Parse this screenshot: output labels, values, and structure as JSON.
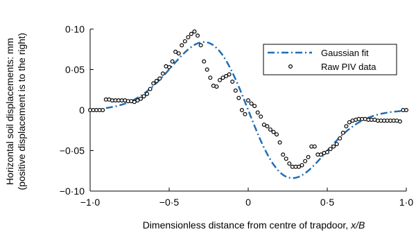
{
  "chart_data": {
    "type": "scatter",
    "title": "",
    "xlabel": "Dimensionless distance from centre of trapdoor, x/B",
    "xlabel_plain": "Dimensionless distance from centre of trapdoor, ",
    "xlabel_italic": "x/B",
    "ylabel_line1": "Horizontal soil displacements: mm",
    "ylabel_line2": "(positive displacement is to the right)",
    "xlim": [
      -1.0,
      1.0
    ],
    "ylim": [
      -0.1,
      0.1
    ],
    "xticks": [
      -1.0,
      -0.5,
      0,
      0.5,
      1.0
    ],
    "xtick_labels": [
      "−1·0",
      "−0·5",
      "0",
      "0·5",
      "1·0"
    ],
    "yticks": [
      -0.1,
      -0.05,
      0,
      0.05,
      0.1
    ],
    "ytick_labels": [
      "−0·10",
      "−0·05",
      "0",
      "0·05",
      "0·10"
    ],
    "grid": false,
    "legend_position": "top-right",
    "series": [
      {
        "name": "Gaussian fit",
        "style": "dash-dot line",
        "color": "#1f6db5",
        "amplitude_mm": 0.084,
        "peak_x": -0.28,
        "x": [
          -0.95,
          -0.9,
          -0.85,
          -0.8,
          -0.75,
          -0.7,
          -0.65,
          -0.6,
          -0.55,
          -0.5,
          -0.45,
          -0.4,
          -0.35,
          -0.3,
          -0.28,
          -0.25,
          -0.2,
          -0.15,
          -0.1,
          -0.05,
          0,
          0.05,
          0.1,
          0.15,
          0.2,
          0.25,
          0.28,
          0.3,
          0.35,
          0.4,
          0.45,
          0.5,
          0.55,
          0.6,
          0.65,
          0.7,
          0.75,
          0.8,
          0.85,
          0.9,
          0.95,
          1.0
        ],
        "values": [
          0.0,
          0.0002,
          0.0006,
          0.0015,
          0.0034,
          0.0069,
          0.0127,
          0.0212,
          0.0324,
          0.0456,
          0.0593,
          0.0716,
          0.0803,
          0.0837,
          0.084,
          0.0833,
          0.0779,
          0.0672,
          0.0526,
          0.0366,
          0.0,
          -0.0366,
          -0.0526,
          -0.0672,
          -0.0779,
          -0.0833,
          -0.084,
          -0.0837,
          -0.0803,
          -0.0716,
          -0.0593,
          -0.0456,
          -0.0324,
          -0.0212,
          -0.0127,
          -0.0069,
          -0.0034,
          -0.0015,
          -0.0006,
          -0.0002,
          0.0,
          0.0
        ]
      },
      {
        "name": "Raw PIV data",
        "style": "open circle markers",
        "color": "#000000",
        "x": [
          -1.0,
          -0.98,
          -0.96,
          -0.94,
          -0.92,
          -0.9,
          -0.88,
          -0.86,
          -0.84,
          -0.82,
          -0.8,
          -0.78,
          -0.76,
          -0.74,
          -0.72,
          -0.7,
          -0.68,
          -0.66,
          -0.64,
          -0.62,
          -0.6,
          -0.58,
          -0.56,
          -0.54,
          -0.52,
          -0.5,
          -0.48,
          -0.46,
          -0.44,
          -0.42,
          -0.4,
          -0.38,
          -0.36,
          -0.34,
          -0.32,
          -0.3,
          -0.28,
          -0.26,
          -0.24,
          -0.22,
          -0.2,
          -0.18,
          -0.16,
          -0.14,
          -0.12,
          -0.1,
          -0.08,
          -0.06,
          -0.04,
          -0.02,
          0.0,
          0.02,
          0.04,
          0.06,
          0.08,
          0.1,
          0.12,
          0.14,
          0.16,
          0.18,
          0.2,
          0.22,
          0.24,
          0.26,
          0.28,
          0.3,
          0.32,
          0.34,
          0.36,
          0.38,
          0.4,
          0.42,
          0.44,
          0.46,
          0.48,
          0.5,
          0.52,
          0.54,
          0.56,
          0.58,
          0.6,
          0.62,
          0.64,
          0.66,
          0.68,
          0.7,
          0.72,
          0.74,
          0.76,
          0.78,
          0.8,
          0.82,
          0.84,
          0.86,
          0.88,
          0.9,
          0.92,
          0.94,
          0.96,
          0.98,
          1.0
        ],
        "values": [
          0.0,
          0.0,
          0.0,
          0.0,
          0.0,
          0.013,
          0.013,
          0.012,
          0.012,
          0.012,
          0.012,
          0.012,
          0.011,
          0.011,
          0.01,
          0.012,
          0.014,
          0.017,
          0.02,
          0.026,
          0.033,
          0.036,
          0.039,
          0.045,
          0.054,
          0.053,
          0.06,
          0.072,
          0.07,
          0.08,
          0.085,
          0.09,
          0.094,
          0.097,
          0.092,
          0.08,
          0.06,
          0.05,
          0.04,
          0.03,
          0.029,
          0.037,
          0.04,
          0.042,
          0.044,
          0.035,
          0.024,
          0.015,
          0.0,
          -0.005,
          0.012,
          0.008,
          0.005,
          -0.003,
          -0.008,
          -0.018,
          -0.02,
          -0.024,
          -0.027,
          -0.03,
          -0.04,
          -0.055,
          -0.06,
          -0.066,
          -0.07,
          -0.07,
          -0.07,
          -0.068,
          -0.063,
          -0.058,
          -0.045,
          -0.045,
          -0.055,
          -0.055,
          -0.053,
          -0.052,
          -0.048,
          -0.045,
          -0.042,
          -0.035,
          -0.028,
          -0.02,
          -0.015,
          -0.013,
          -0.012,
          -0.011,
          -0.011,
          -0.011,
          -0.012,
          -0.012,
          -0.012,
          -0.013,
          -0.013,
          -0.013,
          -0.013,
          -0.013,
          -0.013,
          -0.013,
          -0.014,
          0.0,
          0.0
        ]
      }
    ]
  }
}
